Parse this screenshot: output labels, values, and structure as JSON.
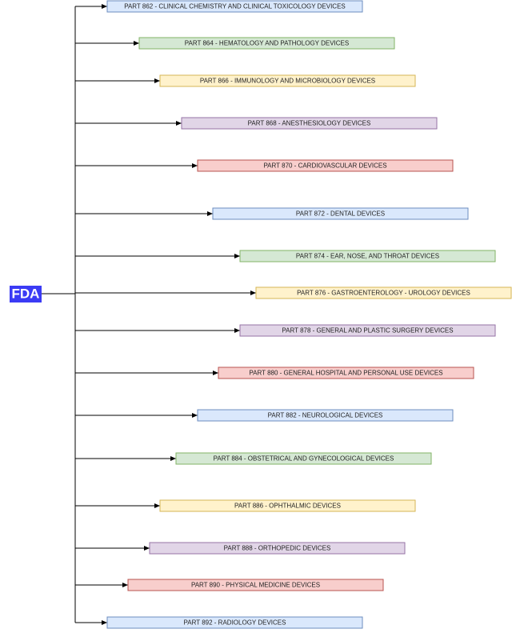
{
  "root": {
    "label": "FDA"
  },
  "nodes": [
    {
      "label": "PART 862 - CLINICAL CHEMISTRY AND CLINICAL TOXICOLOGY DEVICES"
    },
    {
      "label": "PART 864 - HEMATOLOGY AND PATHOLOGY DEVICES"
    },
    {
      "label": "PART 866 - IMMUNOLOGY AND MICROBIOLOGY DEVICES"
    },
    {
      "label": "PART 868 - ANESTHESIOLOGY DEVICES"
    },
    {
      "label": "PART 870 - CARDIOVASCULAR DEVICES"
    },
    {
      "label": "PART 872 - DENTAL DEVICES"
    },
    {
      "label": "PART 874 - EAR, NOSE, AND THROAT DEVICES"
    },
    {
      "label": "PART 876 - GASTROENTEROLOGY - UROLOGY DEVICES"
    },
    {
      "label": "PART 878 - GENERAL AND PLASTIC SURGERY DEVICES"
    },
    {
      "label": "PART 880 - GENERAL HOSPITAL AND PERSONAL USE DEVICES"
    },
    {
      "label": "PART 882 - NEUROLOGICAL DEVICES"
    },
    {
      "label": "PART 884 - OBSTETRICAL AND GYNECOLOGICAL DEVICES"
    },
    {
      "label": "PART 886 - OPHTHALMIC DEVICES"
    },
    {
      "label": "PART 888 - ORTHOPEDIC DEVICES"
    },
    {
      "label": "PART 890 - PHYSICAL MEDICINE DEVICES"
    },
    {
      "label": "PART 892 - RADIOLOGY DEVICES"
    }
  ]
}
